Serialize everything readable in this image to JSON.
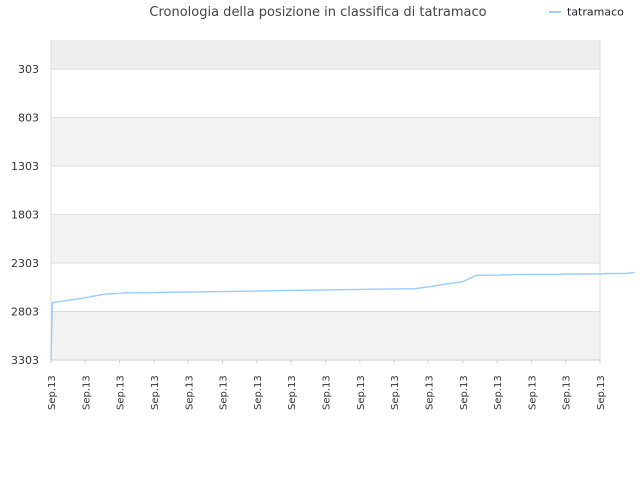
{
  "chart_data": {
    "type": "line",
    "title": "Cronologia della posizione in classifica di tatramaco",
    "xlabel": "",
    "ylabel": "",
    "legend": {
      "position": "top-right"
    },
    "grid": true,
    "y_inverted": true,
    "ylim": [
      3303,
      3
    ],
    "yticks": [
      3303,
      2803,
      2303,
      1803,
      1303,
      803,
      303
    ],
    "categories": [
      "Sep.13",
      "Sep.13",
      "Sep.13",
      "Sep.13",
      "Sep.13",
      "Sep.13",
      "Sep.13",
      "Sep.13",
      "Sep.13",
      "Sep.13",
      "Sep.13",
      "Sep.13",
      "Sep.13",
      "Sep.13",
      "Sep.13",
      "Sep.13",
      "Sep.13"
    ],
    "series": [
      {
        "name": "tatramaco",
        "color": "#99ccff",
        "values": [
          [
            0.0,
            3303
          ],
          [
            0.04,
            2711
          ],
          [
            0.6,
            2682
          ],
          [
            1.0,
            2660
          ],
          [
            1.6,
            2622
          ],
          [
            2.0,
            2615
          ],
          [
            2.1,
            2611
          ],
          [
            3.0,
            2609
          ],
          [
            3.4,
            2604
          ],
          [
            4.0,
            2602
          ],
          [
            5.0,
            2597
          ],
          [
            6.0,
            2592
          ],
          [
            7.0,
            2585
          ],
          [
            8.0,
            2580
          ],
          [
            9.0,
            2575
          ],
          [
            10.0,
            2570
          ],
          [
            10.6,
            2568
          ],
          [
            11.0,
            2549
          ],
          [
            11.6,
            2515
          ],
          [
            12.0,
            2495
          ],
          [
            12.4,
            2428
          ],
          [
            13.0,
            2428
          ],
          [
            13.4,
            2422
          ],
          [
            14.0,
            2421
          ],
          [
            14.8,
            2420
          ],
          [
            15.0,
            2416
          ],
          [
            16.0,
            2415
          ],
          [
            16.2,
            2411
          ],
          [
            16.8,
            2410
          ],
          [
            17.0,
            2400
          ]
        ]
      }
    ]
  }
}
